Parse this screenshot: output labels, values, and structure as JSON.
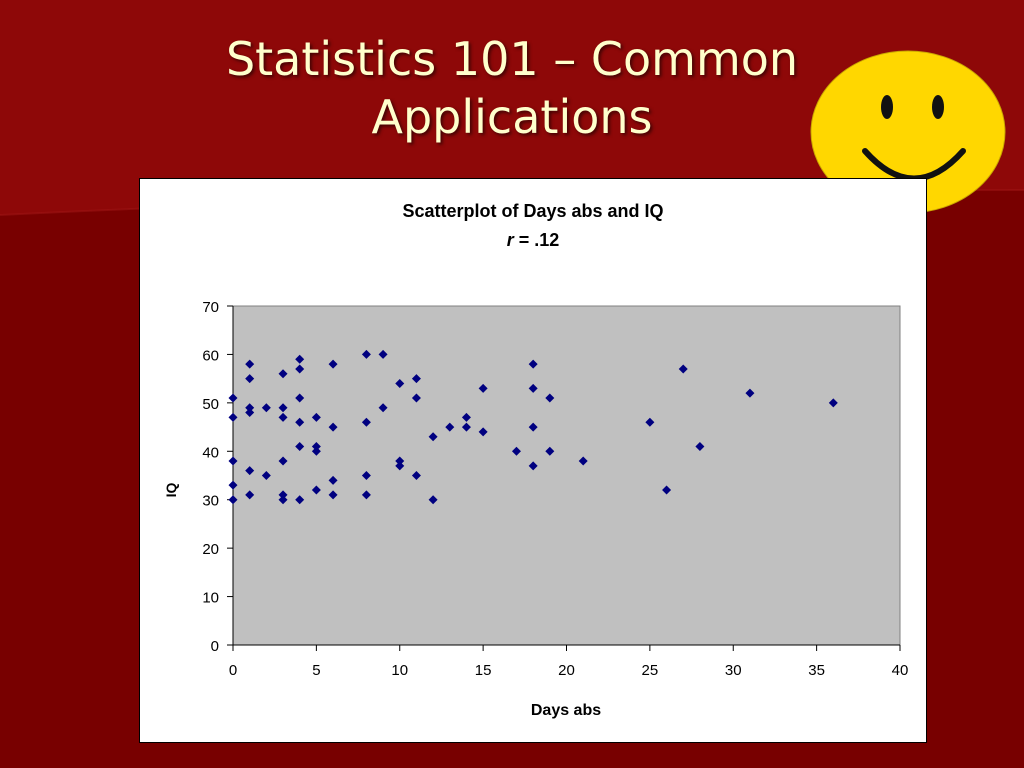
{
  "slide": {
    "title_line1": "Statistics 101 – Common",
    "title_line2": "Applications",
    "smiley_icon": "smiley-face-icon"
  },
  "colors": {
    "background": "#7a0000",
    "title_text": "#ffffcc",
    "plot_area": "#c0c0c0",
    "marker": "#000080",
    "smiley_fill": "#ffd700"
  },
  "chart_data": {
    "type": "scatter",
    "title": "Scatterplot of Days abs and IQ",
    "subtitle_italic": "r",
    "subtitle_rest": " = .12",
    "xlabel": "Days abs",
    "ylabel": "IQ",
    "xlim": [
      0,
      40
    ],
    "ylim": [
      0,
      70
    ],
    "xticks": [
      0,
      5,
      10,
      15,
      20,
      25,
      30,
      35,
      40
    ],
    "yticks": [
      0,
      10,
      20,
      30,
      40,
      50,
      60,
      70
    ],
    "grid": false,
    "marker": "diamond",
    "points": [
      [
        0,
        51
      ],
      [
        0,
        47
      ],
      [
        0,
        38
      ],
      [
        0,
        33
      ],
      [
        0,
        30
      ],
      [
        1,
        58
      ],
      [
        1,
        55
      ],
      [
        1,
        49
      ],
      [
        1,
        48
      ],
      [
        1,
        36
      ],
      [
        1,
        31
      ],
      [
        2,
        49
      ],
      [
        2,
        35
      ],
      [
        3,
        56
      ],
      [
        3,
        49
      ],
      [
        3,
        47
      ],
      [
        3,
        38
      ],
      [
        3,
        31
      ],
      [
        3,
        30
      ],
      [
        4,
        59
      ],
      [
        4,
        57
      ],
      [
        4,
        51
      ],
      [
        4,
        46
      ],
      [
        4,
        41
      ],
      [
        4,
        30
      ],
      [
        5,
        47
      ],
      [
        5,
        41
      ],
      [
        5,
        40
      ],
      [
        5,
        32
      ],
      [
        6,
        58
      ],
      [
        6,
        45
      ],
      [
        6,
        34
      ],
      [
        6,
        31
      ],
      [
        8,
        60
      ],
      [
        8,
        46
      ],
      [
        8,
        35
      ],
      [
        8,
        31
      ],
      [
        9,
        60
      ],
      [
        9,
        49
      ],
      [
        10,
        54
      ],
      [
        10,
        38
      ],
      [
        10,
        37
      ],
      [
        11,
        55
      ],
      [
        11,
        51
      ],
      [
        11,
        35
      ],
      [
        12,
        43
      ],
      [
        12,
        30
      ],
      [
        13,
        45
      ],
      [
        14,
        47
      ],
      [
        14,
        45
      ],
      [
        15,
        53
      ],
      [
        15,
        44
      ],
      [
        17,
        40
      ],
      [
        18,
        58
      ],
      [
        18,
        53
      ],
      [
        18,
        45
      ],
      [
        18,
        37
      ],
      [
        19,
        51
      ],
      [
        19,
        40
      ],
      [
        21,
        38
      ],
      [
        25,
        46
      ],
      [
        26,
        32
      ],
      [
        27,
        57
      ],
      [
        28,
        41
      ],
      [
        31,
        52
      ],
      [
        36,
        50
      ]
    ]
  }
}
